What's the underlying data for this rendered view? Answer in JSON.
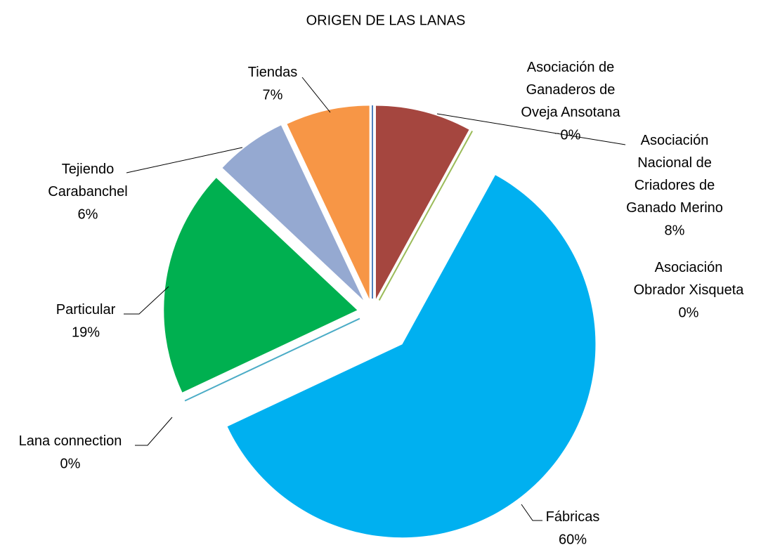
{
  "chart_data": {
    "type": "pie",
    "title": "ORIGEN DE LAS LANAS",
    "categories": [
      "Asociación de Ganaderos de Oveja Ansotana",
      "Asociación Nacional de Criadores de Ganado Merino",
      "Asociación Obrador Xisqueta",
      "Fábricas",
      "Lana connection",
      "Particular",
      "Tejiendo Carabanchel",
      "Tiendas"
    ],
    "values": [
      0,
      8,
      0,
      60,
      0,
      19,
      6,
      7
    ],
    "value_labels": [
      "0%",
      "8%",
      "0%",
      "60%",
      "0%",
      "19%",
      "6%",
      "7%"
    ],
    "colors": [
      "#4f81bd",
      "#a5463f",
      "#9bbb59",
      "#00b0f0",
      "#4bacc6",
      "#00b050",
      "#95a9d1",
      "#f79646"
    ]
  }
}
